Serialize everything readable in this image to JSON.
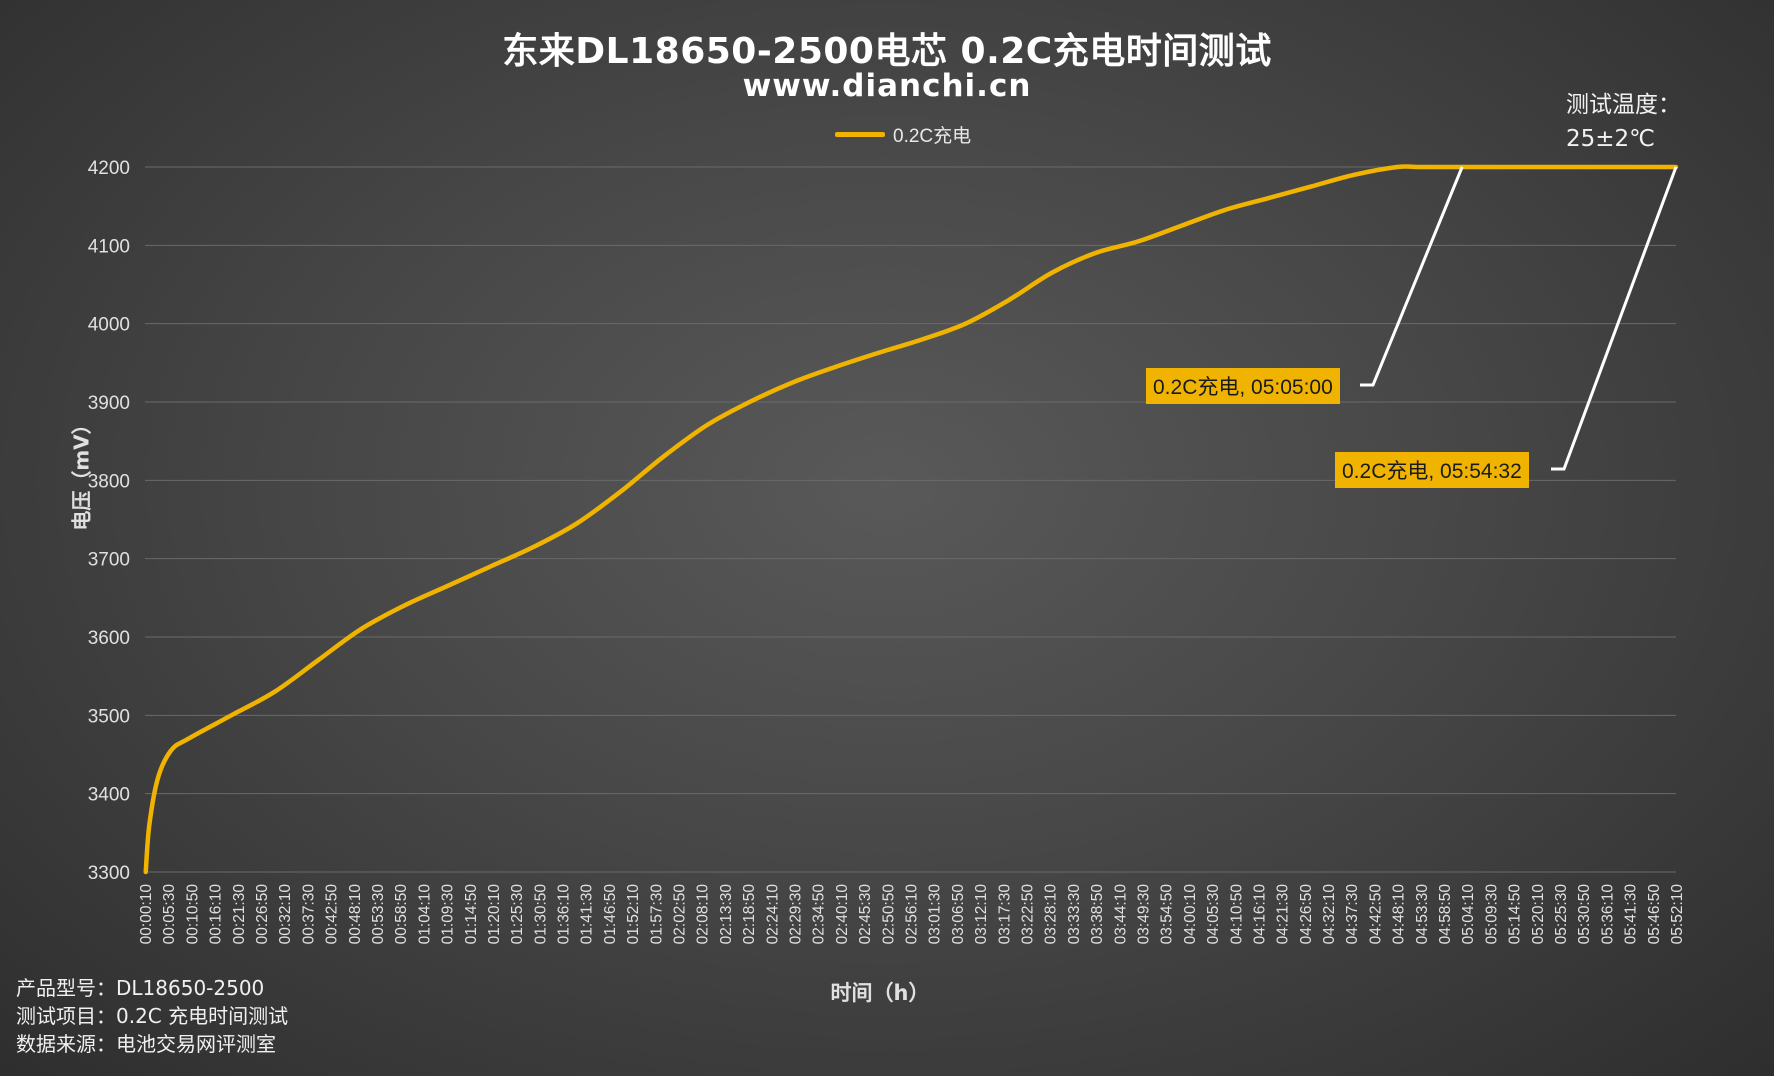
{
  "title": "东来DL18650-2500电芯 0.2C充电时间测试",
  "subtitle": "www.dianchi.cn",
  "temperature_note": {
    "line1": "测试温度：",
    "line2": "25±2℃"
  },
  "footer": {
    "product": "产品型号：DL18650-2500",
    "test_item": "测试项目：0.2C 充电时间测试",
    "source": "数据来源：电池交易网评测室"
  },
  "colors": {
    "series": "#f0b400",
    "callout_bg": "#f0b400",
    "leader": "#ffffff",
    "grid": "#6a6a6a",
    "text": "#e0e0e0"
  },
  "chart_data": {
    "type": "line",
    "title": "东来DL18650-2500电芯 0.2C充电时间测试",
    "xlabel": "时间（h）",
    "ylabel": "电压（mV）",
    "ylim": [
      3300,
      4200
    ],
    "y_ticks": [
      3300,
      3400,
      3500,
      3600,
      3700,
      3800,
      3900,
      4000,
      4100,
      4200
    ],
    "grid": true,
    "legend_placement": "top-center",
    "x_ticks": [
      "00:00:10",
      "00:05:30",
      "00:10:50",
      "00:16:10",
      "00:21:30",
      "00:26:50",
      "00:32:10",
      "00:37:30",
      "00:42:50",
      "00:48:10",
      "00:53:30",
      "00:58:50",
      "01:04:10",
      "01:09:30",
      "01:14:50",
      "01:20:10",
      "01:25:30",
      "01:30:50",
      "01:36:10",
      "01:41:30",
      "01:46:50",
      "01:52:10",
      "01:57:30",
      "02:02:50",
      "02:08:10",
      "02:13:30",
      "02:18:50",
      "02:24:10",
      "02:29:30",
      "02:34:50",
      "02:40:10",
      "02:45:30",
      "02:50:50",
      "02:56:10",
      "03:01:30",
      "03:06:50",
      "03:12:10",
      "03:17:30",
      "03:22:50",
      "03:28:10",
      "03:33:30",
      "03:38:50",
      "03:44:10",
      "03:49:30",
      "03:54:50",
      "04:00:10",
      "04:05:30",
      "04:10:50",
      "04:16:10",
      "04:21:30",
      "04:26:50",
      "04:32:10",
      "04:37:30",
      "04:42:50",
      "04:48:10",
      "04:53:30",
      "04:58:50",
      "05:04:10",
      "05:09:30",
      "05:14:50",
      "05:20:10",
      "05:25:30",
      "05:30:50",
      "05:36:10",
      "05:41:30",
      "05:46:50",
      "05:52:10"
    ],
    "series": [
      {
        "name": "0.2C充电",
        "x_minutes": [
          0.17,
          1,
          3,
          6,
          10,
          20,
          30,
          40,
          50,
          60,
          70,
          80,
          90,
          100,
          110,
          120,
          130,
          140,
          150,
          160,
          170,
          180,
          190,
          200,
          210,
          220,
          230,
          240,
          250,
          260,
          270,
          280,
          290,
          295,
          300,
          305,
          315,
          325,
          335,
          345,
          354.53
        ],
        "y_mV": [
          3300,
          3360,
          3420,
          3455,
          3470,
          3500,
          3530,
          3570,
          3610,
          3640,
          3665,
          3690,
          3715,
          3745,
          3785,
          3830,
          3870,
          3900,
          3925,
          3945,
          3963,
          3980,
          4000,
          4030,
          4065,
          4090,
          4105,
          4125,
          4145,
          4160,
          4175,
          4190,
          4200,
          4200,
          4200,
          4200,
          4200,
          4200,
          4200,
          4200,
          4200
        ]
      }
    ],
    "annotations": [
      {
        "label": "0.2C充电, 05:05:00",
        "x_minutes": 305.0,
        "y_mV": 4200
      },
      {
        "label": "0.2C充电, 05:54:32",
        "x_minutes": 354.53,
        "y_mV": 4200
      }
    ]
  }
}
